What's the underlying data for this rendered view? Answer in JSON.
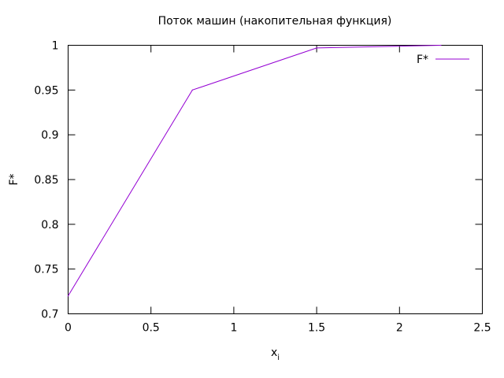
{
  "chart_data": {
    "type": "line",
    "title": "Поток машин (накопительная функция)",
    "xlabel": "x",
    "xlabel_subscript": "i",
    "ylabel": "F*",
    "xlim": [
      0,
      2.5
    ],
    "ylim": [
      0.7,
      1.0
    ],
    "x_ticks": [
      0,
      0.5,
      1,
      1.5,
      2,
      2.5
    ],
    "x_tick_labels": [
      "0",
      "0.5",
      "1",
      "1.5",
      "2",
      "2.5"
    ],
    "y_ticks": [
      0.7,
      0.75,
      0.8,
      0.85,
      0.9,
      0.95,
      1.0
    ],
    "y_tick_labels": [
      "0.7",
      "0.75",
      "0.8",
      "0.85",
      "0.9",
      "0.95",
      "1"
    ],
    "grid": false,
    "legend_position": "top-right",
    "series": [
      {
        "name": "F*",
        "color": "#9400d3",
        "x": [
          0,
          0.75,
          1.5,
          2.25
        ],
        "y": [
          0.72,
          0.95,
          0.997,
          1.0
        ]
      }
    ]
  }
}
